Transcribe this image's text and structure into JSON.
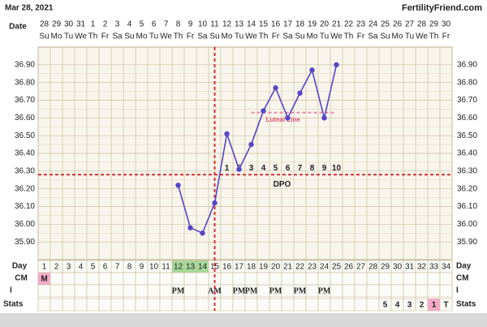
{
  "chart_data": {
    "type": "line",
    "title": "Mar 28, 2021",
    "site": "FertilityFriend.com",
    "row_labels": {
      "date": "Date",
      "day": "Day",
      "cm": "CM",
      "i": "I",
      "stats": "Stats"
    },
    "dates": [
      28,
      29,
      30,
      31,
      1,
      2,
      3,
      4,
      5,
      6,
      7,
      8,
      9,
      10,
      11,
      12,
      13,
      14,
      15,
      16,
      17,
      18,
      19,
      20,
      21,
      22,
      23,
      24,
      25,
      26,
      27,
      28,
      29,
      30
    ],
    "weekdays": [
      "Su",
      "Mo",
      "Tu",
      "We",
      "Th",
      "Fr",
      "Sa",
      "Su",
      "Mo",
      "Tu",
      "We",
      "Th",
      "Fr",
      "Sa",
      "Su",
      "Mo",
      "Tu",
      "We",
      "Th",
      "Fr",
      "Sa",
      "Su",
      "Mo",
      "Tu",
      "We",
      "Th",
      "Fr",
      "Sa",
      "Su",
      "Mo",
      "Tu",
      "We",
      "Th",
      "Fr"
    ],
    "days": [
      1,
      2,
      3,
      4,
      5,
      6,
      7,
      8,
      9,
      10,
      11,
      12,
      13,
      14,
      15,
      16,
      17,
      18,
      19,
      20,
      21,
      22,
      23,
      24,
      25,
      26,
      27,
      28,
      29,
      30,
      31,
      32,
      33,
      34
    ],
    "highlight_days": [
      12,
      13,
      14
    ],
    "highlight_color": "#a6d99a",
    "x": [
      12,
      13,
      14,
      15,
      16,
      17,
      18,
      19,
      20,
      21,
      22,
      23,
      24,
      25
    ],
    "values": [
      36.22,
      35.98,
      35.95,
      36.12,
      36.51,
      36.31,
      36.45,
      36.64,
      36.77,
      36.6,
      36.74,
      36.87,
      36.6,
      36.9
    ],
    "color": "#5546c4",
    "ylim": [
      35.8,
      37.0
    ],
    "yticks": [
      {
        "value": 35.9,
        "label": "35.90"
      },
      {
        "value": 36.0,
        "label": "36.00"
      },
      {
        "value": 36.1,
        "label": "36.10"
      },
      {
        "value": 36.2,
        "label": "36.20"
      },
      {
        "value": 36.3,
        "label": "36.30"
      },
      {
        "value": 36.4,
        "label": "36.40"
      },
      {
        "value": 36.5,
        "label": "36.50"
      },
      {
        "value": 36.6,
        "label": "36.60"
      },
      {
        "value": 36.7,
        "label": "36.70"
      },
      {
        "value": 36.8,
        "label": "36.80"
      },
      {
        "value": 36.9,
        "label": "36.90"
      }
    ],
    "grid": true,
    "coverline": 36.28,
    "ovulation_day": 15,
    "dpo_label": "DPO",
    "dpo": [
      1,
      2,
      3,
      4,
      5,
      6,
      7,
      8,
      9,
      10
    ],
    "luteal": {
      "label": "Luteal Line",
      "value": 36.63,
      "from": 18,
      "to": 25
    },
    "cm": [
      {
        "day": 1,
        "label": "M"
      }
    ],
    "i": [
      {
        "day": 12,
        "label": "PM"
      },
      {
        "day": 15,
        "label": "AM"
      },
      {
        "day": 17,
        "label": "PM"
      },
      {
        "day": 18,
        "label": "PM"
      },
      {
        "day": 20,
        "label": "PM"
      },
      {
        "day": 22,
        "label": "PM"
      },
      {
        "day": 24,
        "label": "PM"
      }
    ],
    "stats": [
      {
        "day": 29,
        "label": "5"
      },
      {
        "day": 30,
        "label": "4"
      },
      {
        "day": 31,
        "label": "3"
      },
      {
        "day": 32,
        "label": "2"
      },
      {
        "day": 33,
        "label": "1"
      },
      {
        "day": 34,
        "label": "T"
      }
    ],
    "stats_highlight_day": 33
  }
}
